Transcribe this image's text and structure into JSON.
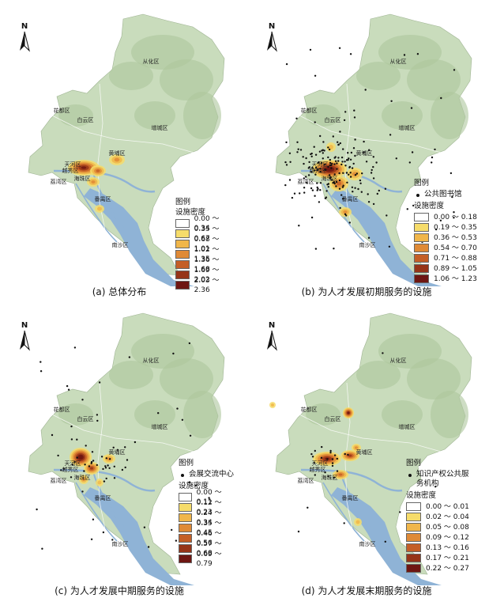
{
  "colors": {
    "land": "#c9dcbc",
    "land_hill": "#adc79c",
    "water": "#8fb3d6",
    "road": "#ffffff",
    "point": "#111111",
    "ramp": [
      "#ffffff",
      "#f6dc6a",
      "#f0b64a",
      "#df8a36",
      "#c45e26",
      "#963418",
      "#6e1612"
    ]
  },
  "district_labels": [
    "从化区",
    "花都区",
    "白云区",
    "增城区",
    "黄埔区",
    "天河区",
    "越秀区",
    "荔湾区",
    "海珠区",
    "番禺区",
    "南沙区"
  ],
  "panels": [
    {
      "id": "a",
      "caption": "(a) 总体分布",
      "north": "N",
      "legend": {
        "title": "图例",
        "symbol_label": "",
        "density_title": "设施密度",
        "classes": [
          "0.00 ～ 0.34",
          "0.35 ～ 0.67",
          "0.68 ～ 1.01",
          "1.02 ～ 1.35",
          "1.36 ～ 1.68",
          "1.69 ～ 2.02",
          "2.03 ～ 2.36"
        ]
      }
    },
    {
      "id": "b",
      "caption": "(b) 为人才发展初期服务的设施",
      "north": "N",
      "legend": {
        "title": "图例",
        "symbol_label": "公共图书馆",
        "density_title": "设施密度",
        "classes": [
          "0.00 ～ 0.18",
          "0.19 ～ 0.35",
          "0.36 ～ 0.53",
          "0.54 ～ 0.70",
          "0.71 ～ 0.88",
          "0.89 ～ 1.05",
          "1.06 ～ 1.23"
        ]
      }
    },
    {
      "id": "c",
      "caption": "(c) 为人才发展中期服务的设施",
      "north": "N",
      "legend": {
        "title": "图例",
        "symbol_label": "会展交流中心",
        "density_title": "设施密度",
        "classes": [
          "0.00 ～ 0.11",
          "0.12 ～ 0.23",
          "0.24 ～ 0.34",
          "0.35 ～ 0.45",
          "0.46 ～ 0.56",
          "0.57 ～ 0.68",
          "0.69 ～ 0.79"
        ]
      }
    },
    {
      "id": "d",
      "caption": "(d) 为人才发展末期服务的设施",
      "north": "N",
      "legend": {
        "title": "图例",
        "symbol_label": "知识产权公共服务机构",
        "density_title": "设施密度",
        "classes": [
          "0.00 ～ 0.01",
          "0.02 ～ 0.04",
          "0.05 ～ 0.08",
          "0.09 ～ 0.12",
          "0.13 ～ 0.16",
          "0.17 ～ 0.21",
          "0.22 ～ 0.27"
        ]
      }
    }
  ]
}
